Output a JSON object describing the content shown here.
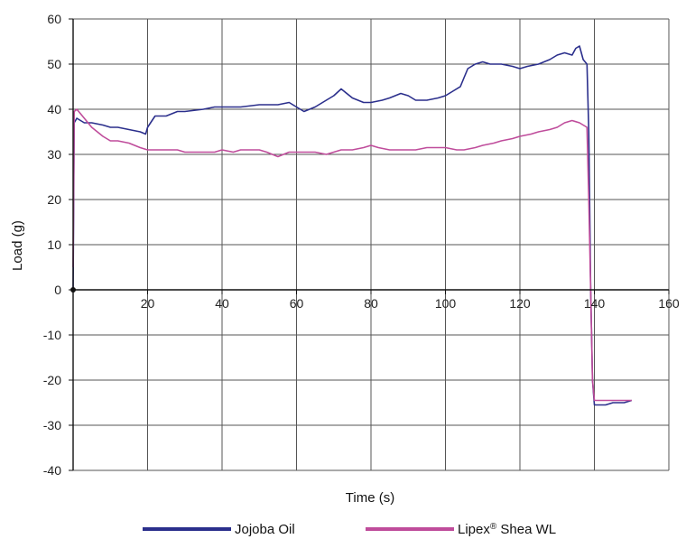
{
  "chart_data": {
    "type": "line",
    "title": "",
    "xlabel": "Time (s)",
    "ylabel": "Load (g)",
    "xlim": [
      0,
      160
    ],
    "ylim": [
      -40,
      60
    ],
    "xticks": [
      "20",
      "40",
      "60",
      "80",
      "100",
      "120",
      "140",
      "160"
    ],
    "yticks": [
      "60",
      "50",
      "40",
      "30",
      "20",
      "10",
      "0",
      "-10",
      "-20",
      "-30",
      "-40"
    ],
    "grid": true,
    "legend_position": "bottom",
    "series": [
      {
        "name": "Jojoba Oil",
        "color": "#2b2f8c",
        "x": [
          0,
          0.3,
          1,
          3,
          5,
          8,
          10,
          12,
          15,
          18,
          19.5,
          20,
          22,
          25,
          28,
          30,
          35,
          38,
          40,
          45,
          50,
          55,
          58,
          60,
          62,
          65,
          68,
          70,
          72,
          75,
          78,
          80,
          83,
          85,
          88,
          90,
          92,
          95,
          98,
          100,
          102,
          104,
          105,
          106,
          108,
          110,
          112,
          115,
          118,
          120,
          122,
          125,
          128,
          130,
          132,
          134,
          135,
          136,
          137,
          138,
          138.5,
          139,
          139.5,
          140,
          141,
          143,
          145,
          148,
          150
        ],
        "y": [
          0,
          37,
          38,
          37,
          37,
          36.5,
          36,
          36,
          35.5,
          35,
          34.5,
          36,
          38.5,
          38.5,
          39.5,
          39.5,
          40,
          40.5,
          40.5,
          40.5,
          41,
          41,
          41.5,
          40.5,
          39.5,
          40.5,
          42,
          43,
          44.5,
          42.5,
          41.5,
          41.5,
          42,
          42.5,
          43.5,
          43,
          42,
          42,
          42.5,
          43,
          44,
          45,
          47,
          49,
          50,
          50.5,
          50,
          50,
          49.5,
          49,
          49.5,
          50,
          51,
          52,
          52.5,
          52,
          53.5,
          54,
          51,
          50,
          35,
          0,
          -20,
          -25.5,
          -25.5,
          -25.5,
          -25,
          -25,
          -24.5
        ]
      },
      {
        "name": "Lipex® Shea WL",
        "color": "#bf4c9b",
        "x": [
          0,
          0.3,
          1,
          3,
          5,
          8,
          10,
          12,
          15,
          18,
          20,
          22,
          25,
          28,
          30,
          33,
          35,
          38,
          40,
          43,
          45,
          48,
          50,
          52,
          55,
          58,
          60,
          62,
          65,
          68,
          70,
          72,
          75,
          78,
          80,
          82,
          85,
          88,
          90,
          92,
          95,
          98,
          100,
          103,
          105,
          108,
          110,
          113,
          115,
          118,
          120,
          123,
          125,
          128,
          130,
          132,
          134,
          136,
          137,
          138,
          138.5,
          139,
          139.5,
          140,
          141,
          143,
          145,
          148,
          150
        ],
        "y": [
          5,
          39.5,
          40,
          38,
          36,
          34,
          33,
          33,
          32.5,
          31.5,
          31,
          31,
          31,
          31,
          30.5,
          30.5,
          30.5,
          30.5,
          31,
          30.5,
          31,
          31,
          31,
          30.5,
          29.5,
          30.5,
          30.5,
          30.5,
          30.5,
          30,
          30.5,
          31,
          31,
          31.5,
          32,
          31.5,
          31,
          31,
          31,
          31,
          31.5,
          31.5,
          31.5,
          31,
          31,
          31.5,
          32,
          32.5,
          33,
          33.5,
          34,
          34.5,
          35,
          35.5,
          36,
          37,
          37.5,
          37,
          36.5,
          36,
          20,
          0,
          -20,
          -24.5,
          -24.5,
          -24.5,
          -24.5,
          -24.5,
          -24.5
        ]
      }
    ]
  }
}
